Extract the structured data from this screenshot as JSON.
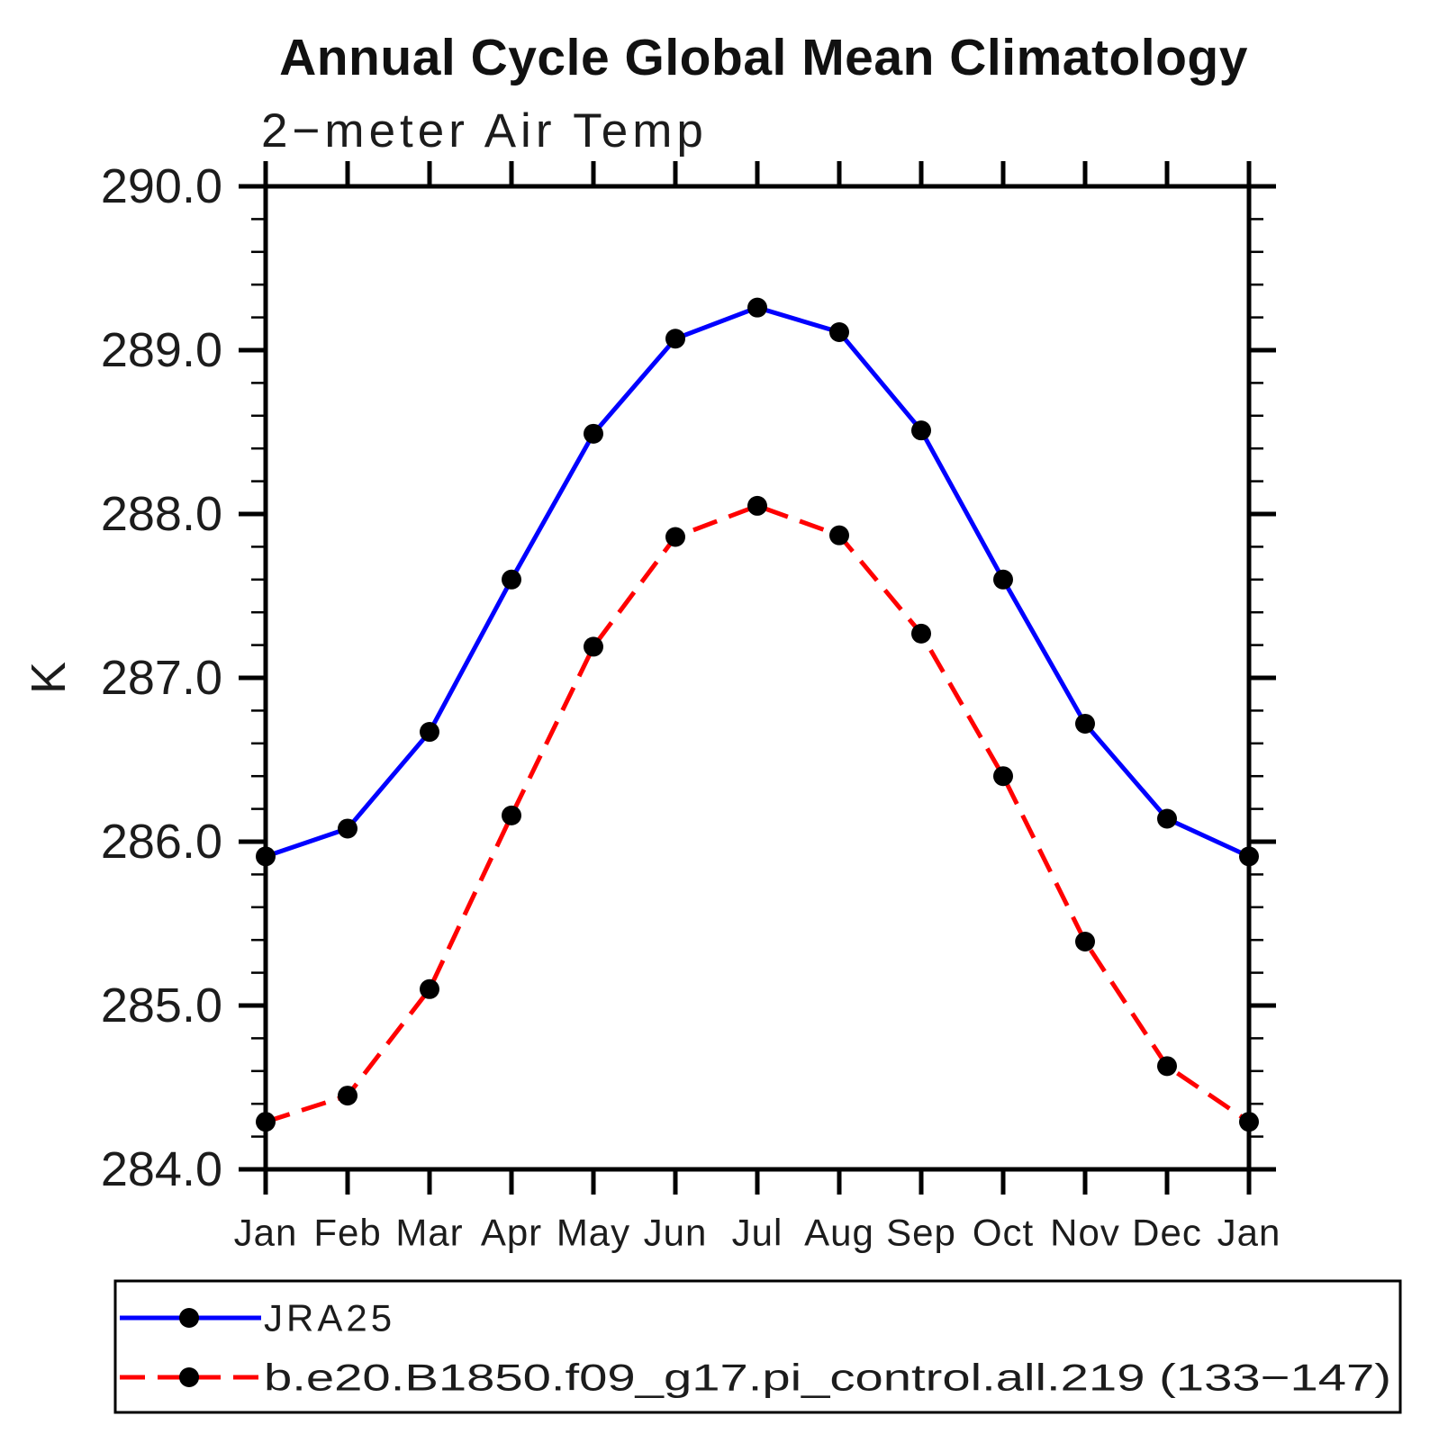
{
  "chart_data": {
    "type": "line",
    "title": "Annual Cycle Global Mean Climatology",
    "subtitle": "2−meter Air Temp",
    "ylabel": "K",
    "ylim": [
      284.0,
      290.0
    ],
    "y_major_step": 1.0,
    "y_minor_step": 0.2,
    "grid": "off",
    "legend_position": "bottom-left",
    "y_tick_labels": [
      "290.0",
      "289.0",
      "288.0",
      "287.0",
      "286.0",
      "285.0",
      "284.0"
    ],
    "x_tick_labels": [
      "Jan",
      "Feb",
      "Mar",
      "Apr",
      "May",
      "Jun",
      "Jul",
      "Aug",
      "Sep",
      "Oct",
      "Nov",
      "Dec",
      "Jan"
    ],
    "series": [
      {
        "name": "JRA25",
        "color": "#0000ff",
        "line_style": "solid",
        "marker": "filled-circle",
        "marker_color": "#000000",
        "values": [
          285.91,
          286.08,
          286.67,
          287.6,
          288.49,
          289.07,
          289.26,
          289.11,
          288.51,
          287.6,
          286.72,
          286.14,
          285.91
        ]
      },
      {
        "name": "b.e20.B1850.f09_g17.pi_control.all.219 (133−147)",
        "color": "#ff0000",
        "line_style": "dashed",
        "marker": "filled-circle",
        "marker_color": "#000000",
        "values": [
          284.29,
          284.45,
          285.1,
          286.16,
          287.19,
          287.86,
          288.05,
          287.87,
          287.27,
          286.4,
          285.39,
          284.63,
          284.29
        ]
      }
    ]
  }
}
